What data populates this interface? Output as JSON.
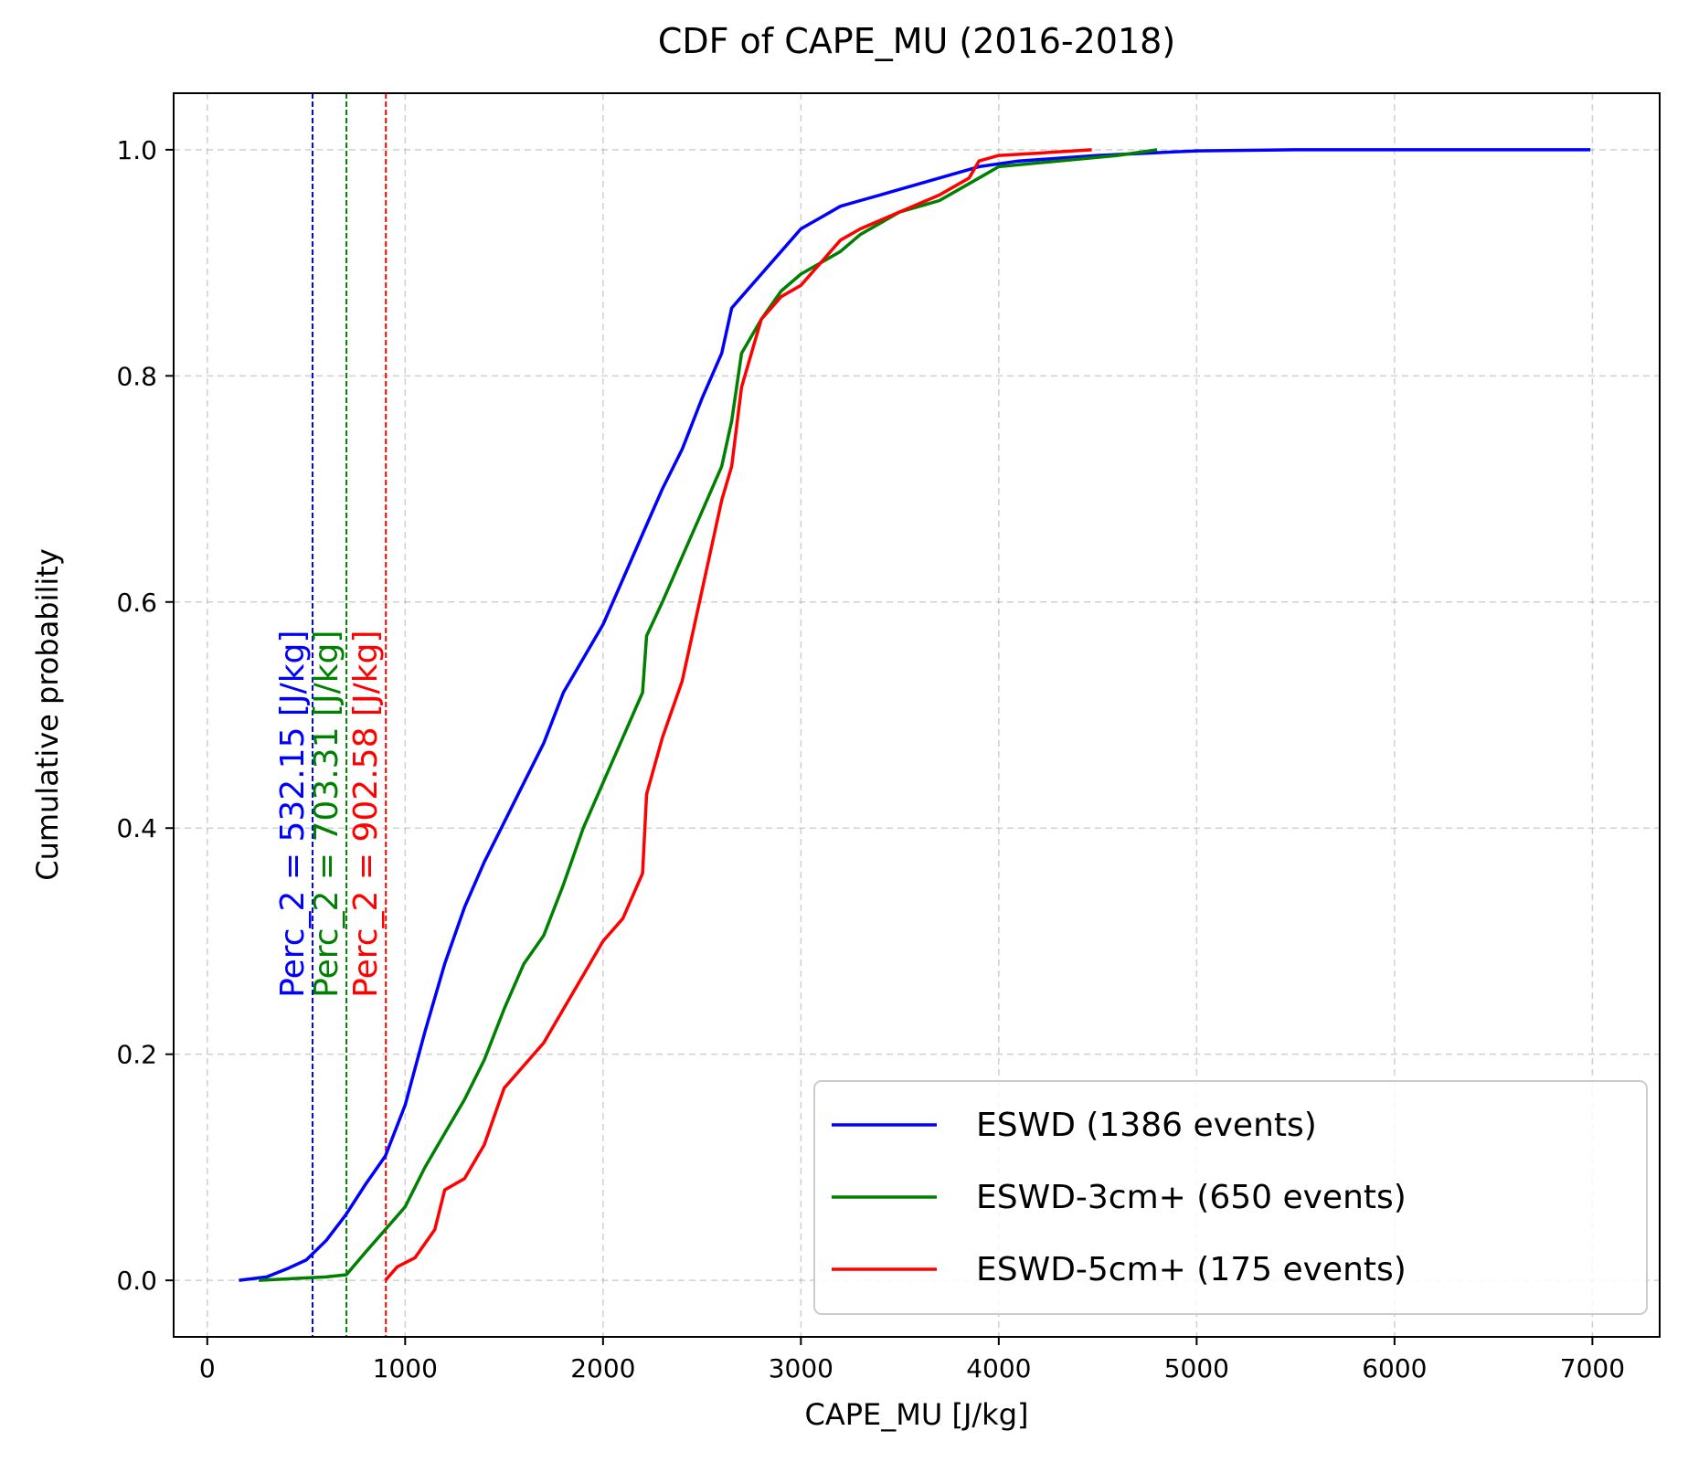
{
  "chart_data": {
    "type": "line",
    "title": "CDF of CAPE_MU (2016-2018)",
    "xlabel": "CAPE_MU [J/kg]",
    "ylabel": "Cumulative probability",
    "xlim": [
      -170,
      7340
    ],
    "ylim": [
      -0.05,
      1.05
    ],
    "xticks": [
      0,
      1000,
      2000,
      3000,
      4000,
      5000,
      6000,
      7000
    ],
    "xtick_labels": [
      "0",
      "1000",
      "2000",
      "3000",
      "4000",
      "5000",
      "6000",
      "7000"
    ],
    "yticks": [
      0.0,
      0.2,
      0.4,
      0.6,
      0.8,
      1.0
    ],
    "ytick_labels": [
      "0.0",
      "0.2",
      "0.4",
      "0.6",
      "0.8",
      "1.0"
    ],
    "grid": true,
    "legend_position": "lower right",
    "series": [
      {
        "name": "ESWD (1386 events)",
        "color": "#0000ff",
        "points": [
          [
            160,
            0.0
          ],
          [
            300,
            0.003
          ],
          [
            400,
            0.01
          ],
          [
            500,
            0.018
          ],
          [
            600,
            0.035
          ],
          [
            700,
            0.058
          ],
          [
            800,
            0.085
          ],
          [
            900,
            0.11
          ],
          [
            1000,
            0.155
          ],
          [
            1100,
            0.22
          ],
          [
            1200,
            0.28
          ],
          [
            1300,
            0.33
          ],
          [
            1400,
            0.37
          ],
          [
            1500,
            0.405
          ],
          [
            1600,
            0.44
          ],
          [
            1700,
            0.475
          ],
          [
            1800,
            0.52
          ],
          [
            1900,
            0.55
          ],
          [
            2000,
            0.58
          ],
          [
            2100,
            0.62
          ],
          [
            2200,
            0.66
          ],
          [
            2300,
            0.7
          ],
          [
            2400,
            0.735
          ],
          [
            2500,
            0.78
          ],
          [
            2600,
            0.82
          ],
          [
            2650,
            0.86
          ],
          [
            2700,
            0.87
          ],
          [
            2800,
            0.89
          ],
          [
            2900,
            0.91
          ],
          [
            3000,
            0.93
          ],
          [
            3100,
            0.94
          ],
          [
            3200,
            0.95
          ],
          [
            3300,
            0.955
          ],
          [
            3400,
            0.96
          ],
          [
            3500,
            0.965
          ],
          [
            3700,
            0.975
          ],
          [
            3900,
            0.985
          ],
          [
            4100,
            0.99
          ],
          [
            4500,
            0.995
          ],
          [
            5000,
            0.999
          ],
          [
            5500,
            1.0
          ],
          [
            6990,
            1.0
          ]
        ]
      },
      {
        "name": "ESWD-3cm+ (650 events)",
        "color": "#008000",
        "points": [
          [
            260,
            0.0
          ],
          [
            600,
            0.003
          ],
          [
            703,
            0.005
          ],
          [
            800,
            0.025
          ],
          [
            900,
            0.045
          ],
          [
            1000,
            0.065
          ],
          [
            1100,
            0.1
          ],
          [
            1200,
            0.13
          ],
          [
            1300,
            0.16
          ],
          [
            1400,
            0.195
          ],
          [
            1500,
            0.24
          ],
          [
            1600,
            0.28
          ],
          [
            1700,
            0.305
          ],
          [
            1800,
            0.35
          ],
          [
            1900,
            0.4
          ],
          [
            2000,
            0.44
          ],
          [
            2100,
            0.48
          ],
          [
            2200,
            0.52
          ],
          [
            2220,
            0.57
          ],
          [
            2300,
            0.6
          ],
          [
            2400,
            0.64
          ],
          [
            2500,
            0.68
          ],
          [
            2600,
            0.72
          ],
          [
            2650,
            0.76
          ],
          [
            2700,
            0.82
          ],
          [
            2800,
            0.85
          ],
          [
            2900,
            0.875
          ],
          [
            3000,
            0.89
          ],
          [
            3100,
            0.9
          ],
          [
            3200,
            0.91
          ],
          [
            3300,
            0.925
          ],
          [
            3400,
            0.935
          ],
          [
            3500,
            0.945
          ],
          [
            3700,
            0.955
          ],
          [
            3900,
            0.975
          ],
          [
            4000,
            0.985
          ],
          [
            4300,
            0.99
          ],
          [
            4600,
            0.995
          ],
          [
            4800,
            1.0
          ]
        ]
      },
      {
        "name": "ESWD-5cm+ (175 events)",
        "color": "#ff0000",
        "points": [
          [
            900,
            0.0
          ],
          [
            960,
            0.012
          ],
          [
            1050,
            0.02
          ],
          [
            1150,
            0.045
          ],
          [
            1200,
            0.08
          ],
          [
            1300,
            0.09
          ],
          [
            1400,
            0.12
          ],
          [
            1500,
            0.17
          ],
          [
            1600,
            0.19
          ],
          [
            1700,
            0.21
          ],
          [
            1800,
            0.24
          ],
          [
            1900,
            0.27
          ],
          [
            2000,
            0.3
          ],
          [
            2100,
            0.32
          ],
          [
            2200,
            0.36
          ],
          [
            2220,
            0.43
          ],
          [
            2300,
            0.48
          ],
          [
            2400,
            0.53
          ],
          [
            2500,
            0.61
          ],
          [
            2600,
            0.69
          ],
          [
            2650,
            0.72
          ],
          [
            2700,
            0.79
          ],
          [
            2750,
            0.82
          ],
          [
            2800,
            0.85
          ],
          [
            2900,
            0.87
          ],
          [
            3000,
            0.88
          ],
          [
            3100,
            0.9
          ],
          [
            3200,
            0.92
          ],
          [
            3300,
            0.93
          ],
          [
            3500,
            0.945
          ],
          [
            3700,
            0.96
          ],
          [
            3850,
            0.975
          ],
          [
            3900,
            0.99
          ],
          [
            4000,
            0.995
          ],
          [
            4200,
            0.997
          ],
          [
            4470,
            1.0
          ]
        ]
      }
    ],
    "vlines": [
      {
        "x": 532.15,
        "color": "#0000ff",
        "label": "Perc_2 = 532.15 [J/kg]"
      },
      {
        "x": 703.31,
        "color": "#008000",
        "label": "Perc_2 = 703.31 [J/kg]"
      },
      {
        "x": 902.58,
        "color": "#ff0000",
        "label": "Perc_2 = 902.58 [J/kg]"
      }
    ]
  }
}
